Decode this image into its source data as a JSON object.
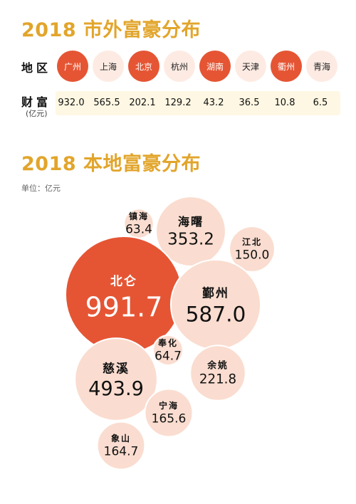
{
  "header": {
    "title1": "2018 市外富豪分布",
    "region_label": "地区",
    "wealth_label": "财富",
    "wealth_unit": "(亿元)",
    "title2": "2018 本地富豪分布",
    "unit_label": "单位：亿元"
  },
  "colors": {
    "title": "#E2A52B",
    "highlight": "#E55534",
    "bubble": "#FADDD0",
    "wealth_bg": "#FEF7E3"
  },
  "cities": [
    {
      "name": "广州",
      "value": "932.0",
      "highlight": true
    },
    {
      "name": "上海",
      "value": "565.5",
      "highlight": false
    },
    {
      "name": "北京",
      "value": "202.1",
      "highlight": true
    },
    {
      "name": "杭州",
      "value": "129.2",
      "highlight": false
    },
    {
      "name": "湖南",
      "value": "43.2",
      "highlight": true
    },
    {
      "name": "天津",
      "value": "36.5",
      "highlight": false
    },
    {
      "name": "衢州",
      "value": "10.8",
      "highlight": true
    },
    {
      "name": "青海",
      "value": "6.5",
      "highlight": false
    }
  ],
  "chart_data": {
    "type": "bubble",
    "title": "2018 本地富豪分布",
    "unit": "单位：亿元",
    "series": [
      {
        "name": "镇海",
        "value": 63.4,
        "highlight": false
      },
      {
        "name": "海曙",
        "value": 353.2,
        "highlight": false
      },
      {
        "name": "江北",
        "value": 150.0,
        "highlight": false
      },
      {
        "name": "北仑",
        "value": 991.7,
        "highlight": true
      },
      {
        "name": "鄞州",
        "value": 587.0,
        "highlight": false
      },
      {
        "name": "奉化",
        "value": 64.7,
        "highlight": false
      },
      {
        "name": "慈溪",
        "value": 493.9,
        "highlight": false
      },
      {
        "name": "余姚",
        "value": 221.8,
        "highlight": false
      },
      {
        "name": "宁海",
        "value": 165.6,
        "highlight": false
      },
      {
        "name": "象山",
        "value": 164.7,
        "highlight": false
      }
    ]
  }
}
